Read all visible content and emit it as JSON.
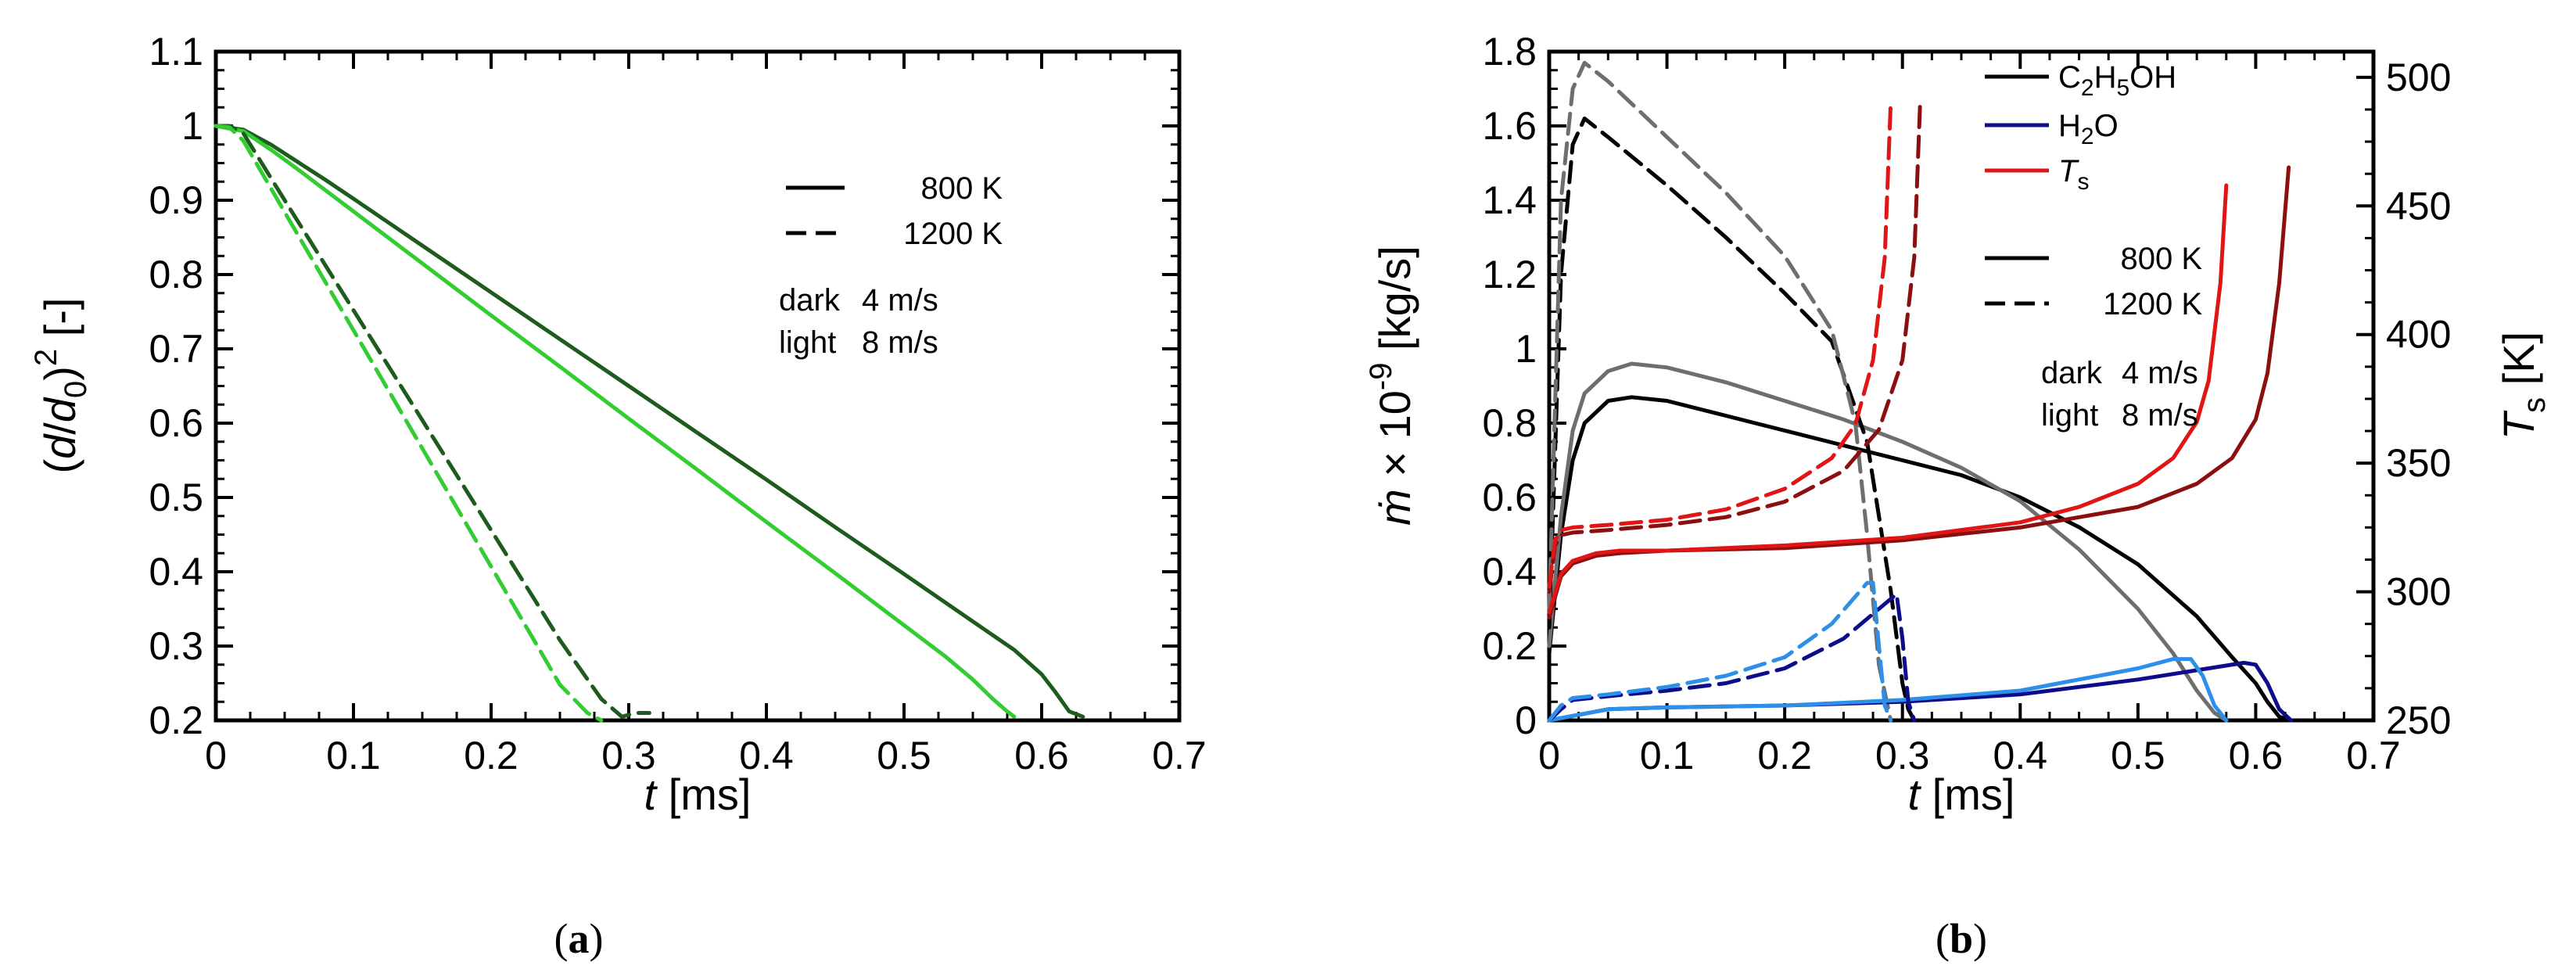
{
  "colors": {
    "green_dark": "#1E5C1E",
    "green_light": "#33CC33",
    "black": "#000000",
    "gray": "#6E6E6E",
    "navy": "#0D0D8C",
    "light_blue": "#2E8FE8",
    "dark_red": "#8B0F0F",
    "red": "#E01515"
  },
  "chart_data": [
    {
      "id": "a",
      "type": "line",
      "caption": "(a)",
      "xlabel": "t [ms]",
      "ylabel": "(d/d0)^2 [-]",
      "xlim": [
        0,
        0.7
      ],
      "ylim": [
        0.2,
        1.1
      ],
      "xticks": [
        "0",
        "0.1",
        "0.2",
        "0.3",
        "0.4",
        "0.5",
        "0.6",
        "0.7"
      ],
      "yticks": [
        "0.2",
        "0.3",
        "0.4",
        "0.5",
        "0.6",
        "0.7",
        "0.8",
        "0.9",
        "1",
        "1.1"
      ],
      "legend": {
        "style_entries": [
          {
            "label": "800 K",
            "dash": "solid"
          },
          {
            "label": "1200 K",
            "dash": "dashed"
          }
        ],
        "shade_entries": [
          {
            "shade": "dark",
            "value": "4 m/s"
          },
          {
            "shade": "light",
            "value": "8 m/s"
          }
        ]
      },
      "series": [
        {
          "name": "800 K, 4 m/s",
          "color": "green_dark",
          "dash": "solid",
          "x": [
            0,
            0.02,
            0.04,
            0.06,
            0.08,
            0.1,
            0.15,
            0.2,
            0.25,
            0.3,
            0.35,
            0.4,
            0.45,
            0.5,
            0.55,
            0.58,
            0.6,
            0.61,
            0.62,
            0.63
          ],
          "y": [
            1.0,
            0.995,
            0.975,
            0.951,
            0.927,
            0.902,
            0.839,
            0.776,
            0.713,
            0.65,
            0.587,
            0.524,
            0.46,
            0.397,
            0.333,
            0.295,
            0.262,
            0.238,
            0.212,
            0.205
          ]
        },
        {
          "name": "800 K, 8 m/s",
          "color": "green_light",
          "dash": "solid",
          "x": [
            0,
            0.02,
            0.04,
            0.06,
            0.08,
            0.1,
            0.15,
            0.2,
            0.25,
            0.3,
            0.35,
            0.4,
            0.45,
            0.5,
            0.53,
            0.55,
            0.565,
            0.575,
            0.58
          ],
          "y": [
            1.0,
            0.993,
            0.968,
            0.941,
            0.913,
            0.885,
            0.815,
            0.745,
            0.676,
            0.606,
            0.537,
            0.467,
            0.398,
            0.328,
            0.286,
            0.255,
            0.228,
            0.212,
            0.205
          ]
        },
        {
          "name": "1200 K, 4 m/s",
          "color": "green_dark",
          "dash": "dashed",
          "x": [
            0,
            0.01,
            0.02,
            0.05,
            0.1,
            0.15,
            0.2,
            0.25,
            0.28,
            0.295,
            0.305,
            0.315
          ],
          "y": [
            1.0,
            1.0,
            0.99,
            0.9,
            0.752,
            0.604,
            0.456,
            0.308,
            0.229,
            0.205,
            0.21,
            0.21
          ]
        },
        {
          "name": "1200 K, 8 m/s",
          "color": "green_light",
          "dash": "dashed",
          "x": [
            0,
            0.01,
            0.02,
            0.05,
            0.1,
            0.15,
            0.2,
            0.25,
            0.27,
            0.28
          ],
          "y": [
            1.0,
            0.998,
            0.98,
            0.884,
            0.725,
            0.566,
            0.407,
            0.248,
            0.21,
            0.2
          ]
        }
      ]
    },
    {
      "id": "b",
      "type": "line",
      "caption": "(b)",
      "xlabel": "t [ms]",
      "ylabel": "ṁ × 10^-9 [kg/s]",
      "y2label": "Ts [K]",
      "xlim": [
        0,
        0.7
      ],
      "ylim": [
        0,
        1.8
      ],
      "y2lim": [
        250,
        510
      ],
      "xticks": [
        "0",
        "0.1",
        "0.2",
        "0.3",
        "0.4",
        "0.5",
        "0.6",
        "0.7"
      ],
      "yticks": [
        "0",
        "0.2",
        "0.4",
        "0.6",
        "0.8",
        "1",
        "1.2",
        "1.4",
        "1.6",
        "1.8"
      ],
      "y2ticks": [
        "250",
        "300",
        "350",
        "400",
        "450",
        "500"
      ],
      "legend": {
        "quantity_entries": [
          {
            "label": "C2H5OH",
            "color": "black"
          },
          {
            "label": "H2O",
            "color": "navy"
          },
          {
            "label": "Ts",
            "color": "red"
          }
        ],
        "style_entries": [
          {
            "label": "800 K",
            "dash": "solid"
          },
          {
            "label": "1200 K",
            "dash": "dashed"
          }
        ],
        "shade_entries": [
          {
            "shade": "dark",
            "value": "4 m/s"
          },
          {
            "shade": "light",
            "value": "8 m/s"
          }
        ]
      },
      "series": [
        {
          "name": "C2H5OH 800 K, 4 m/s",
          "axis": "left",
          "color": "black",
          "dash": "solid",
          "x": [
            0,
            0.01,
            0.02,
            0.03,
            0.05,
            0.07,
            0.1,
            0.15,
            0.2,
            0.25,
            0.3,
            0.35,
            0.4,
            0.45,
            0.5,
            0.55,
            0.58,
            0.6,
            0.61,
            0.62,
            0.63
          ],
          "y": [
            0.18,
            0.5,
            0.7,
            0.8,
            0.86,
            0.87,
            0.86,
            0.82,
            0.78,
            0.74,
            0.7,
            0.66,
            0.6,
            0.52,
            0.42,
            0.28,
            0.17,
            0.1,
            0.05,
            0.01,
            0.0
          ]
        },
        {
          "name": "C2H5OH 800 K, 8 m/s",
          "axis": "left",
          "color": "gray",
          "dash": "solid",
          "x": [
            0,
            0.01,
            0.02,
            0.03,
            0.05,
            0.07,
            0.1,
            0.15,
            0.2,
            0.25,
            0.3,
            0.35,
            0.4,
            0.45,
            0.5,
            0.53,
            0.55,
            0.565,
            0.575
          ],
          "y": [
            0.2,
            0.55,
            0.78,
            0.88,
            0.94,
            0.96,
            0.95,
            0.91,
            0.86,
            0.81,
            0.75,
            0.68,
            0.59,
            0.46,
            0.3,
            0.18,
            0.08,
            0.02,
            0.0
          ]
        },
        {
          "name": "C2H5OH 1200 K, 4 m/s",
          "axis": "left",
          "color": "black",
          "dash": "dashed",
          "x": [
            0,
            0.01,
            0.02,
            0.03,
            0.05,
            0.1,
            0.15,
            0.2,
            0.24,
            0.27,
            0.29,
            0.3,
            0.305,
            0.31
          ],
          "y": [
            0.25,
            1.2,
            1.55,
            1.62,
            1.57,
            1.44,
            1.3,
            1.15,
            1.02,
            0.75,
            0.35,
            0.1,
            0.03,
            0.0
          ]
        },
        {
          "name": "C2H5OH 1200 K, 8 m/s",
          "axis": "left",
          "color": "gray",
          "dash": "dashed",
          "x": [
            0,
            0.01,
            0.02,
            0.03,
            0.05,
            0.1,
            0.15,
            0.2,
            0.24,
            0.26,
            0.27,
            0.28,
            0.29
          ],
          "y": [
            0.3,
            1.4,
            1.7,
            1.77,
            1.72,
            1.57,
            1.42,
            1.25,
            1.05,
            0.8,
            0.5,
            0.15,
            0.0
          ]
        },
        {
          "name": "H2O 800 K, 4 m/s",
          "axis": "left",
          "color": "navy",
          "dash": "solid",
          "x": [
            0,
            0.05,
            0.1,
            0.2,
            0.3,
            0.4,
            0.5,
            0.55,
            0.59,
            0.6,
            0.61,
            0.62,
            0.63
          ],
          "y": [
            0.0,
            0.03,
            0.035,
            0.04,
            0.05,
            0.07,
            0.11,
            0.135,
            0.155,
            0.15,
            0.1,
            0.03,
            0.0
          ]
        },
        {
          "name": "H2O 800 K, 8 m/s",
          "axis": "left",
          "color": "light_blue",
          "dash": "solid",
          "x": [
            0,
            0.05,
            0.1,
            0.2,
            0.3,
            0.4,
            0.5,
            0.53,
            0.545,
            0.555,
            0.565,
            0.575
          ],
          "y": [
            0.0,
            0.03,
            0.035,
            0.04,
            0.055,
            0.08,
            0.14,
            0.165,
            0.165,
            0.12,
            0.04,
            0.0
          ]
        },
        {
          "name": "H2O 1200 K, 4 m/s",
          "axis": "left",
          "color": "navy",
          "dash": "dashed",
          "x": [
            0,
            0.01,
            0.02,
            0.05,
            0.1,
            0.15,
            0.2,
            0.25,
            0.28,
            0.295,
            0.3,
            0.305,
            0.31
          ],
          "y": [
            0.0,
            0.03,
            0.055,
            0.065,
            0.08,
            0.1,
            0.14,
            0.22,
            0.3,
            0.34,
            0.22,
            0.05,
            0.0
          ]
        },
        {
          "name": "H2O 1200 K, 8 m/s",
          "axis": "left",
          "color": "light_blue",
          "dash": "dashed",
          "x": [
            0,
            0.01,
            0.02,
            0.05,
            0.1,
            0.15,
            0.2,
            0.24,
            0.27,
            0.275,
            0.28,
            0.285,
            0.29
          ],
          "y": [
            0.0,
            0.04,
            0.06,
            0.07,
            0.09,
            0.12,
            0.17,
            0.26,
            0.37,
            0.37,
            0.2,
            0.04,
            0.0
          ]
        },
        {
          "name": "Ts 800 K, 4 m/s",
          "axis": "right",
          "color": "dark_red",
          "dash": "solid",
          "x": [
            0,
            0.01,
            0.02,
            0.04,
            0.06,
            0.1,
            0.2,
            0.3,
            0.4,
            0.5,
            0.55,
            0.58,
            0.6,
            0.61,
            0.62,
            0.628
          ],
          "y": [
            290,
            306,
            311,
            314,
            315,
            316,
            317,
            320,
            325,
            333,
            342,
            352,
            367,
            385,
            420,
            465
          ]
        },
        {
          "name": "Ts 800 K, 8 m/s",
          "axis": "right",
          "color": "red",
          "dash": "solid",
          "x": [
            0,
            0.01,
            0.02,
            0.04,
            0.06,
            0.1,
            0.2,
            0.3,
            0.4,
            0.45,
            0.5,
            0.53,
            0.55,
            0.56,
            0.57,
            0.575
          ],
          "y": [
            292,
            307,
            312,
            315,
            316,
            316,
            318,
            321,
            327,
            333,
            342,
            352,
            366,
            382,
            420,
            458
          ]
        },
        {
          "name": "Ts 1200 K, 4 m/s",
          "axis": "right",
          "color": "dark_red",
          "dash": "dashed",
          "x": [
            0,
            0.005,
            0.01,
            0.02,
            0.05,
            0.1,
            0.15,
            0.2,
            0.25,
            0.28,
            0.3,
            0.31,
            0.315
          ],
          "y": [
            300,
            318,
            322,
            323,
            324,
            326,
            329,
            335,
            347,
            363,
            390,
            430,
            490
          ]
        },
        {
          "name": "Ts 1200 K, 8 m/s",
          "axis": "right",
          "color": "red",
          "dash": "dashed",
          "x": [
            0,
            0.005,
            0.01,
            0.02,
            0.05,
            0.1,
            0.15,
            0.2,
            0.24,
            0.26,
            0.275,
            0.285,
            0.29
          ],
          "y": [
            302,
            320,
            324,
            325,
            326,
            328,
            332,
            340,
            352,
            365,
            390,
            430,
            490
          ]
        }
      ]
    }
  ]
}
